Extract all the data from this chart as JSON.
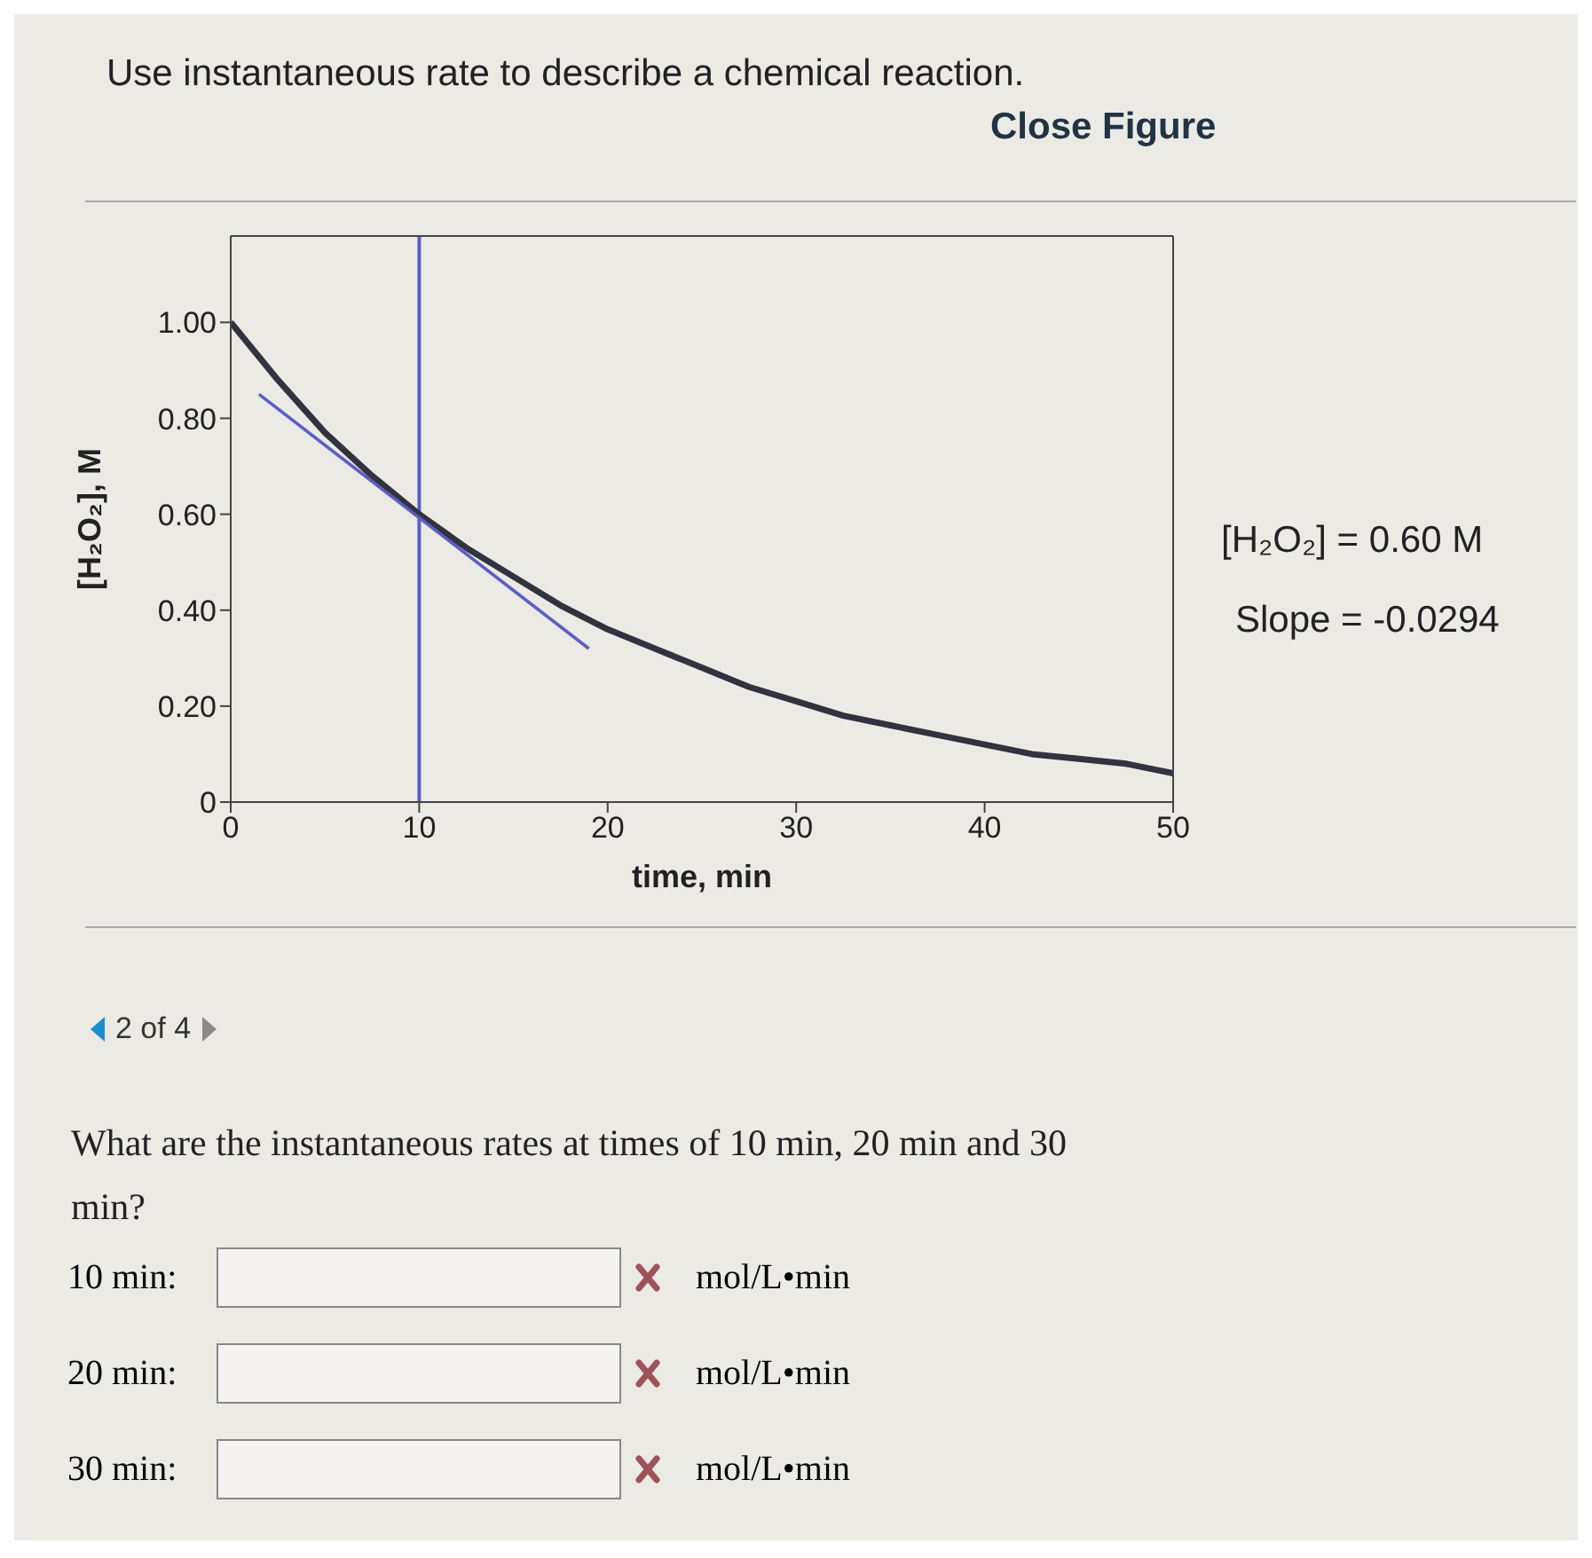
{
  "chart_data": {
    "type": "line",
    "title": "Use instantaneous rate to describe a chemical reaction.",
    "xlabel": "time, min",
    "ylabel": "[H₂O₂], M",
    "series": [
      {
        "color": "#33333f",
        "x": [
          0,
          2.5,
          5,
          7.5,
          10,
          12.5,
          15,
          17.5,
          20,
          22.5,
          25,
          27.5,
          30,
          32.5,
          35,
          37.5,
          40,
          42.5,
          45,
          47.5,
          50
        ],
        "values": [
          1.0,
          0.88,
          0.77,
          0.68,
          0.6,
          0.53,
          0.47,
          0.41,
          0.36,
          0.32,
          0.28,
          0.24,
          0.21,
          0.18,
          0.16,
          0.14,
          0.12,
          0.1,
          0.09,
          0.08,
          0.06
        ]
      },
      {
        "color": "#5a5ec6",
        "x": [
          1.5,
          19
        ],
        "values": [
          0.85,
          0.32
        ]
      }
    ],
    "xlim": [
      0,
      50
    ],
    "xticks": [
      0,
      10,
      20,
      30,
      40,
      50
    ],
    "ylim": [
      0,
      1.18
    ],
    "yticks": [
      0,
      {
        "value": 0.2,
        "label": "0.20"
      },
      {
        "value": 0.4,
        "label": "0.40"
      },
      {
        "value": 0.6,
        "label": "0.60"
      },
      {
        "value": 0.8,
        "label": "0.80"
      },
      {
        "value": 1.0,
        "label": "1.00"
      }
    ],
    "ref_lines": [
      {
        "axis": "x",
        "value": 10,
        "color": "#5a5ec6"
      }
    ],
    "grid": false,
    "legend": false,
    "marker": "none",
    "line_style": "solid",
    "annotations": [
      "[H₂O₂] = 0.60 M",
      "Slope = -0.0294",
      "Close Figure",
      "2 of 4",
      "What are the instantaneous rates at times of 10 min, 20 min and 30 min?",
      "10 min:",
      "mol/L•min",
      "20 min:",
      "mol/L•min",
      "30 min:",
      "mol/L•min"
    ]
  }
}
